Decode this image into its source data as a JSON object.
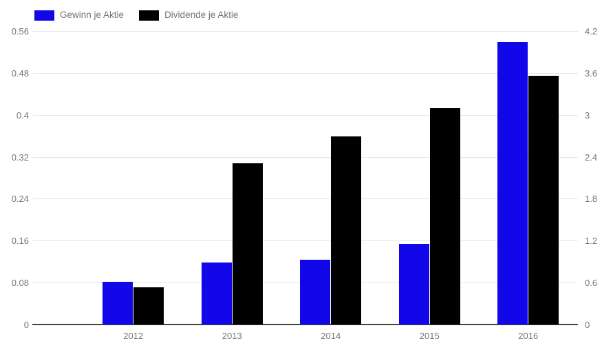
{
  "legend": [
    {
      "label": "Gewinn je Aktie",
      "color": "#1207e8"
    },
    {
      "label": "Dividende je Aktie",
      "color": "#000000"
    }
  ],
  "colors": {
    "series_blue": "#1207e8",
    "series_black": "#000000",
    "tick_text": "#757575",
    "gridline": "#e6e6e6",
    "baseline": "#424242"
  },
  "chart_data": {
    "type": "bar",
    "title": "",
    "categories": [
      "2012",
      "2013",
      "2014",
      "2015",
      "2016"
    ],
    "series": [
      {
        "name": "Gewinn je Aktie",
        "axis": "left",
        "color": "#1207e8",
        "values": [
          0.081,
          0.118,
          0.124,
          0.154,
          0.539
        ]
      },
      {
        "name": "Dividende je Aktie",
        "axis": "right",
        "color": "#000000",
        "values": [
          0.53,
          2.31,
          2.69,
          3.1,
          3.56
        ]
      }
    ],
    "left_axis": {
      "min": 0,
      "max": 0.56,
      "ticks": [
        0,
        0.08,
        0.16,
        0.24,
        0.32,
        0.4,
        0.48,
        0.56
      ],
      "tick_labels": [
        "0",
        "0.08",
        "0.16",
        "0.24",
        "0.32",
        "0.4",
        "0.48",
        "0.56"
      ]
    },
    "right_axis": {
      "min": 0,
      "max": 4.2,
      "ticks": [
        0,
        0.6,
        1.2,
        1.8,
        2.4,
        3,
        3.6,
        4.2
      ],
      "tick_labels": [
        "0",
        "0.6",
        "1.2",
        "1.8",
        "2.4",
        "3",
        "3.6",
        "4.2"
      ]
    },
    "grid": true,
    "legend_position": "top-left"
  }
}
